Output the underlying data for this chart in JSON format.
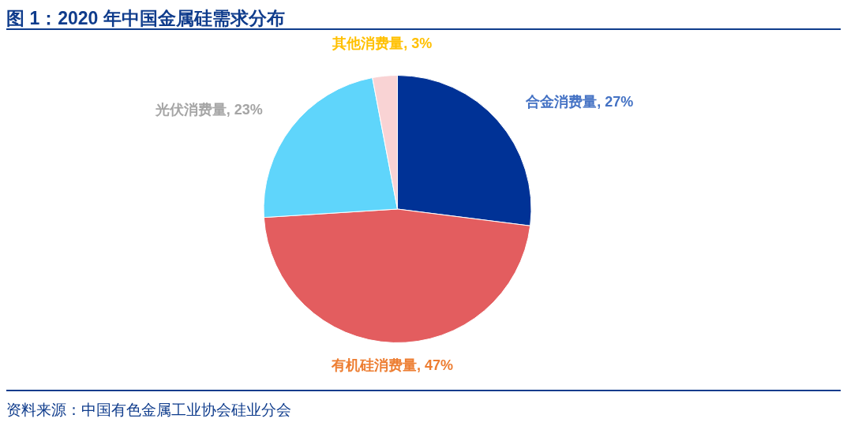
{
  "chart_data": {
    "type": "pie",
    "title": "图 1：2020 年中国金属硅需求分布",
    "categories": [
      "合金消费量",
      "有机硅消费量",
      "光伏消费量",
      "其他消费量"
    ],
    "values": [
      27,
      47,
      23,
      3
    ],
    "colors": [
      "#003296",
      "#e35d5f",
      "#5fd5fb",
      "#f9d3d4"
    ],
    "value_labels": [
      ", 27%",
      ", 47%",
      ", 23%",
      ", 3%"
    ],
    "legend": false,
    "annotations": [
      "资料来源：中国有色金属工业协会硅业分会"
    ]
  }
}
